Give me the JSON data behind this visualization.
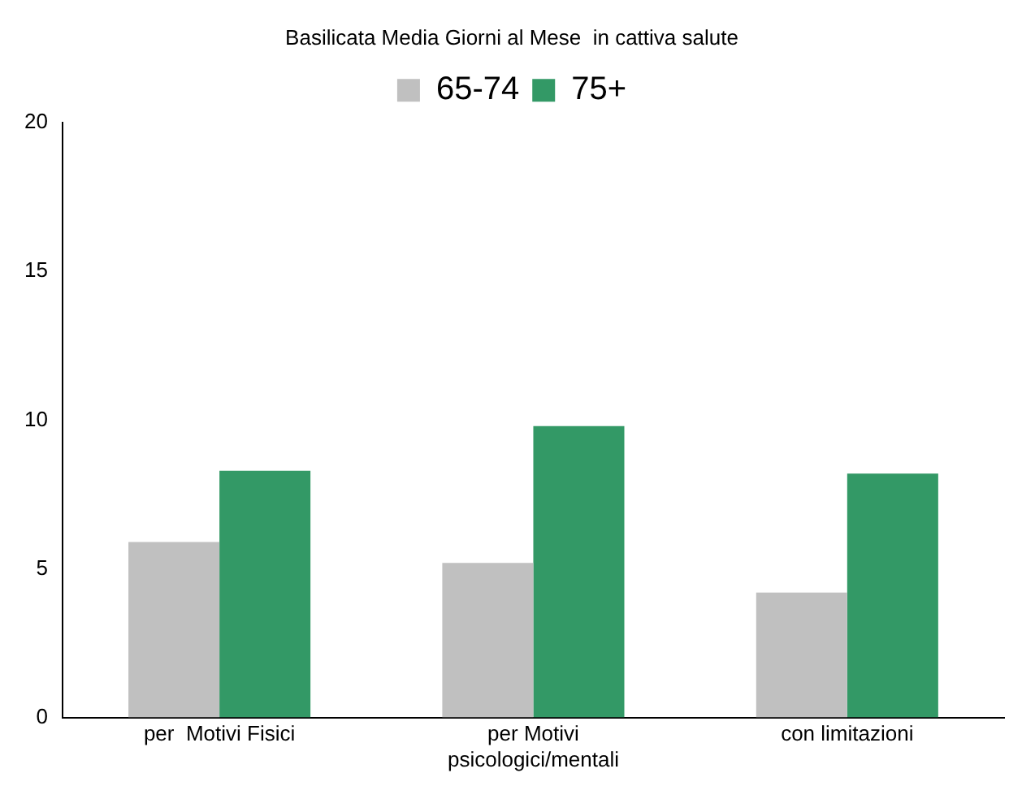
{
  "chart_data": {
    "type": "bar",
    "title": "Basilicata Media Giorni al Mese  in cattiva salute",
    "categories": [
      "per  Motivi Fisici",
      "per Motivi psicologici/mentali",
      "con limitazioni"
    ],
    "series": [
      {
        "name": "65-74",
        "color": "#c0c0c0",
        "values": [
          5.9,
          5.2,
          4.2
        ]
      },
      {
        "name": "75+",
        "color": "#339966",
        "values": [
          8.3,
          9.8,
          8.2
        ]
      }
    ],
    "ylim": [
      0,
      20
    ],
    "yticks": [
      0,
      5,
      10,
      15,
      20
    ],
    "grid": false,
    "legend": "top"
  }
}
